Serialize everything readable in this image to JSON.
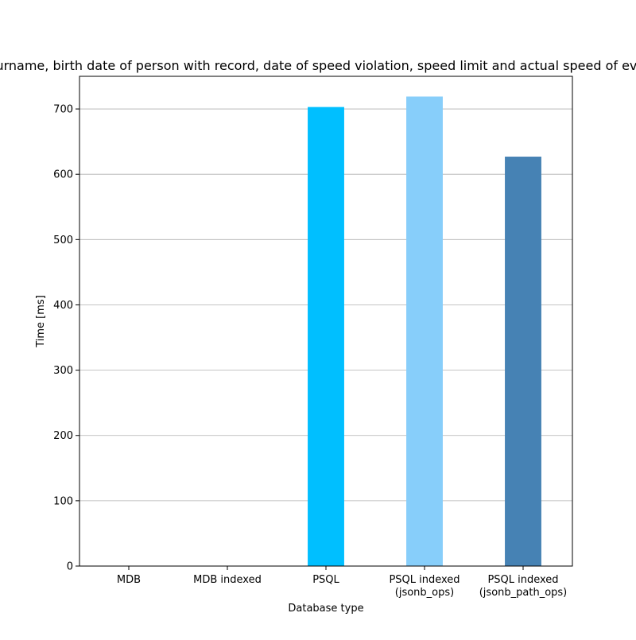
{
  "chart_data": {
    "type": "bar",
    "title": "Get the name, surname, birth date of person with record, date of speed violation, speed limit and actual speed of every speed violation",
    "xlabel": "Database type",
    "ylabel": "Time [ms]",
    "categories": [
      [
        "MDB"
      ],
      [
        "MDB indexed"
      ],
      [
        "PSQL"
      ],
      [
        "PSQL indexed",
        "(jsonb_ops)"
      ],
      [
        "PSQL indexed",
        "(jsonb_path_ops)"
      ]
    ],
    "values": [
      0,
      0,
      703,
      719,
      627
    ],
    "colors": [
      "#1f77b4",
      "#1f77b4",
      "#00bfff",
      "#87cefa",
      "#4682b4"
    ],
    "ylim": [
      0,
      750
    ],
    "yticks": [
      0,
      100,
      200,
      300,
      400,
      500,
      600,
      700
    ],
    "grid": "y",
    "legend": "none"
  }
}
